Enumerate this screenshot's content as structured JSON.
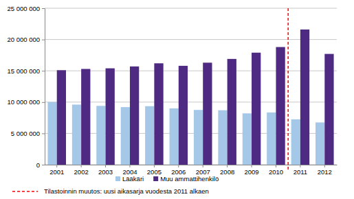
{
  "chart_data": {
    "type": "bar",
    "categories": [
      "2001",
      "2002",
      "2003",
      "2004",
      "2005",
      "2006",
      "2007",
      "2008",
      "2009",
      "2010",
      "2011",
      "2012"
    ],
    "series": [
      {
        "name": "Lääkäri",
        "color": "#a5c8e8",
        "values": [
          10000000,
          9600000,
          9400000,
          9200000,
          9350000,
          9000000,
          8750000,
          8700000,
          8200000,
          8350000,
          7250000,
          6750000
        ]
      },
      {
        "name": "Muu ammattihenkilö",
        "color": "#4f2a83",
        "values": [
          15100000,
          15300000,
          15400000,
          15700000,
          16200000,
          15800000,
          16300000,
          16900000,
          17900000,
          18800000,
          21600000,
          17700000
        ]
      }
    ],
    "ylim": [
      0,
      25000000
    ],
    "yticks": [
      0,
      {
        "value": 5000000,
        "label": "5 000 000"
      },
      {
        "value": 10000000,
        "label": "10 000 000"
      },
      {
        "value": 15000000,
        "label": "15 000 000"
      },
      {
        "value": 20000000,
        "label": "20 000 000"
      },
      {
        "value": 25000000,
        "label": "25 000 000"
      }
    ],
    "grid": true,
    "legend": "bottom",
    "annotations": [
      {
        "label": "Tilastoinnin muutos: uusi aikasarja vuodesta 2011 alkaen",
        "before": "2011",
        "color": "#ff0000",
        "line_style": "dashed"
      }
    ]
  }
}
